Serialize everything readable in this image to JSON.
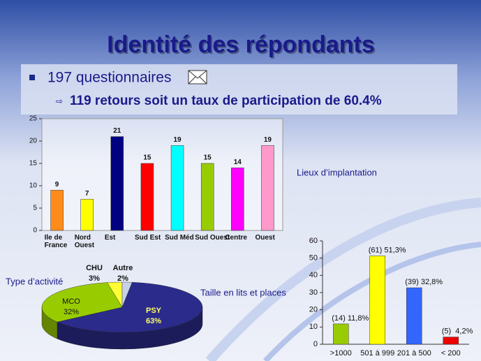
{
  "slide": {
    "title": "Identité des répondants",
    "bullet": "197 questionnaires",
    "sub_bullet": "119 retours soit un taux de participation de 60.4%"
  },
  "chart_data": [
    {
      "type": "bar",
      "title": "Lieux d’implantation",
      "categories": [
        "Ile de France",
        "Nord Ouest",
        "Est",
        "Sud Est",
        "Sud Méd",
        "Sud Ouest",
        "Centre",
        "Ouest"
      ],
      "values": [
        9,
        7,
        21,
        15,
        19,
        15,
        14,
        19
      ],
      "colors": [
        "#ff8c1a",
        "#ffff00",
        "#000080",
        "#ff0000",
        "#00ffff",
        "#99cc00",
        "#ff00ff",
        "#ff99cc"
      ],
      "ylim": [
        0,
        25
      ],
      "yticks": [
        0,
        5,
        10,
        15,
        20,
        25
      ]
    },
    {
      "type": "pie",
      "title": "Type d’activité",
      "categories": [
        "CHU",
        "Autre",
        "MCO",
        "PSY"
      ],
      "values": [
        3,
        2,
        32,
        63
      ],
      "value_labels": [
        "3%",
        "2%",
        "32%",
        "63%"
      ],
      "colors": [
        "#ffff33",
        "#c8d0e8",
        "#99cc00",
        "#2b2b8c"
      ]
    },
    {
      "type": "bar",
      "title": "Taille en lits et places",
      "categories": [
        ">1000",
        "501 à 999",
        "201 à 500",
        "< 200"
      ],
      "values": [
        11.8,
        51.3,
        32.8,
        4.2
      ],
      "value_labels": [
        "(14) 11,8%",
        "(61) 51,3%",
        "(39) 32,8%",
        "(5)  4,2%"
      ],
      "colors": [
        "#99cc00",
        "#ffff00",
        "#3366ff",
        "#ee0000"
      ],
      "ylim": [
        0,
        60
      ],
      "yticks": [
        0,
        10,
        20,
        30,
        40,
        50,
        60
      ]
    }
  ]
}
